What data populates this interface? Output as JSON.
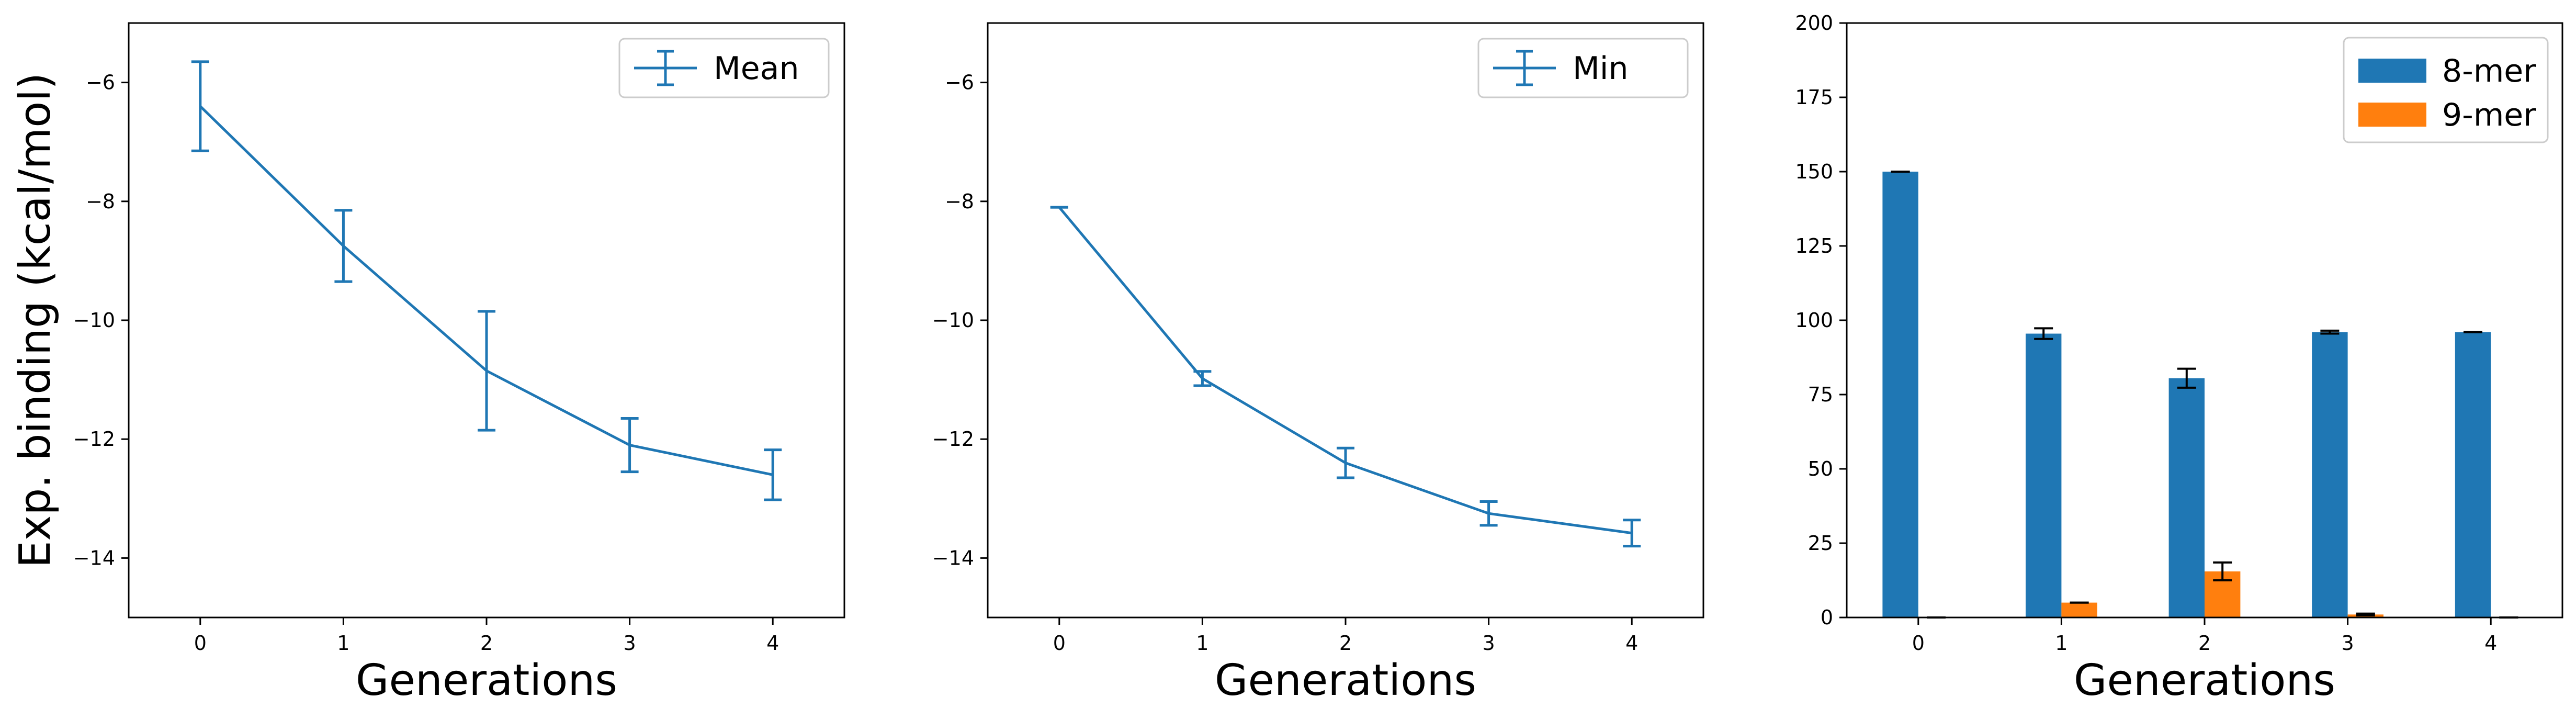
{
  "colors": {
    "line": "#1f77b4",
    "bar_8mer": "#1f77b4",
    "bar_9mer": "#ff7f0e",
    "errorbar_bars": "#000000",
    "axes": "#000000",
    "background": "#ffffff"
  },
  "chart_data": [
    {
      "type": "line",
      "title": "",
      "xlabel": "Generations",
      "ylabel": "Exp. binding (kcal/mol)",
      "x": [
        0,
        1,
        2,
        3,
        4
      ],
      "xlim": [
        -0.5,
        4.5
      ],
      "ylim": [
        -15.0,
        -5.0
      ],
      "xticks": [
        "0",
        "1",
        "2",
        "3",
        "4"
      ],
      "yticks": [
        "−6",
        "−8",
        "−10",
        "−12",
        "−14"
      ],
      "yticks_values": [
        -6,
        -8,
        -10,
        -12,
        -14
      ],
      "legend_position": "upper-right",
      "grid": false,
      "series": [
        {
          "name": "Mean",
          "values": [
            -6.4,
            -8.75,
            -10.85,
            -12.1,
            -12.6
          ],
          "error": [
            0.75,
            0.6,
            1.0,
            0.45,
            0.42
          ]
        }
      ]
    },
    {
      "type": "line",
      "title": "",
      "xlabel": "Generations",
      "ylabel": "",
      "x": [
        0,
        1,
        2,
        3,
        4
      ],
      "xlim": [
        -0.5,
        4.5
      ],
      "ylim": [
        -15.0,
        -5.0
      ],
      "xticks": [
        "0",
        "1",
        "2",
        "3",
        "4"
      ],
      "yticks": [
        "−6",
        "−8",
        "−10",
        "−12",
        "−14"
      ],
      "yticks_values": [
        -6,
        -8,
        -10,
        -12,
        -14
      ],
      "legend_position": "upper-right",
      "grid": false,
      "series": [
        {
          "name": "Min",
          "values": [
            -8.1,
            -10.98,
            -12.4,
            -13.25,
            -13.58
          ],
          "error": [
            0.0,
            0.12,
            0.25,
            0.2,
            0.22
          ]
        }
      ]
    },
    {
      "type": "bar",
      "title": "",
      "xlabel": "Generations",
      "ylabel": "",
      "categories": [
        "0",
        "1",
        "2",
        "3",
        "4"
      ],
      "x": [
        0,
        1,
        2,
        3,
        4
      ],
      "xlim": [
        -0.5,
        4.5
      ],
      "ylim": [
        0,
        200
      ],
      "yticks": [
        "0",
        "25",
        "50",
        "75",
        "100",
        "125",
        "150",
        "175",
        "200"
      ],
      "yticks_values": [
        0,
        25,
        50,
        75,
        100,
        125,
        150,
        175,
        200
      ],
      "legend_position": "upper-right",
      "grid": false,
      "series": [
        {
          "name": "8-mer",
          "values": [
            150,
            95.5,
            80.5,
            96,
            96
          ],
          "error": [
            0,
            1.8,
            3.2,
            0.5,
            0
          ]
        },
        {
          "name": "9-mer",
          "values": [
            0,
            5,
            15.5,
            1,
            0
          ],
          "error": [
            0,
            0,
            3,
            0.3,
            0
          ]
        }
      ]
    }
  ]
}
